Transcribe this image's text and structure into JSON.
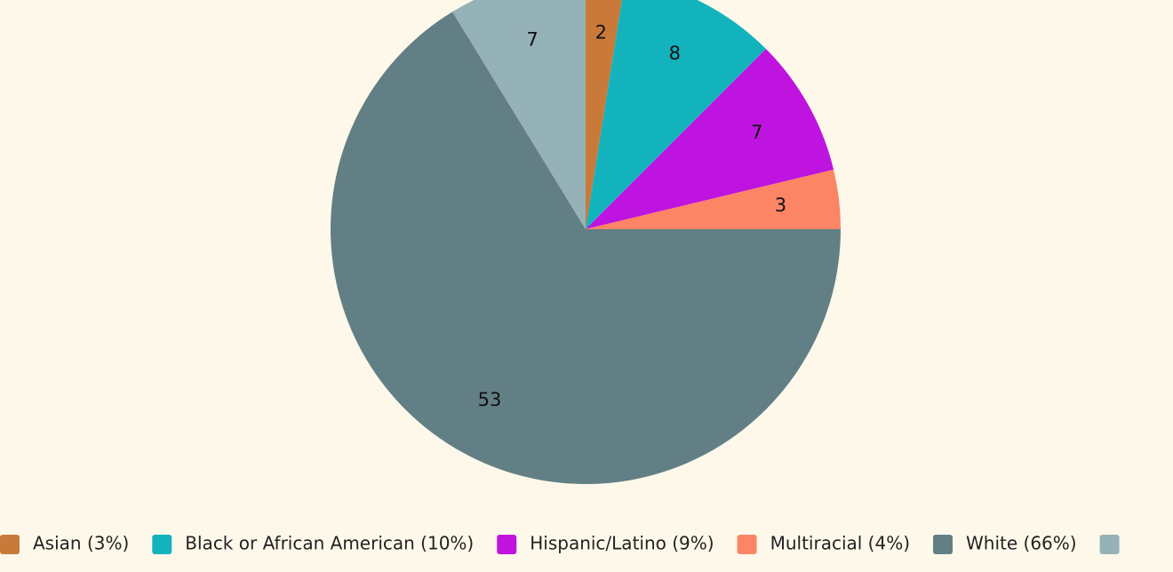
{
  "chart_data": {
    "type": "pie",
    "categories": [
      "Asian (3%)",
      "Black or African American (10%)",
      "Hispanic/Latino (9%)",
      "Multiracial (4%)",
      "White (66%)",
      null
    ],
    "values": [
      2,
      8,
      7,
      3,
      53,
      7
    ],
    "colors": [
      "#c97a3a",
      "#13b3bd",
      "#bf14df",
      "#fc8566",
      "#627f85",
      "#95b2b8"
    ]
  }
}
